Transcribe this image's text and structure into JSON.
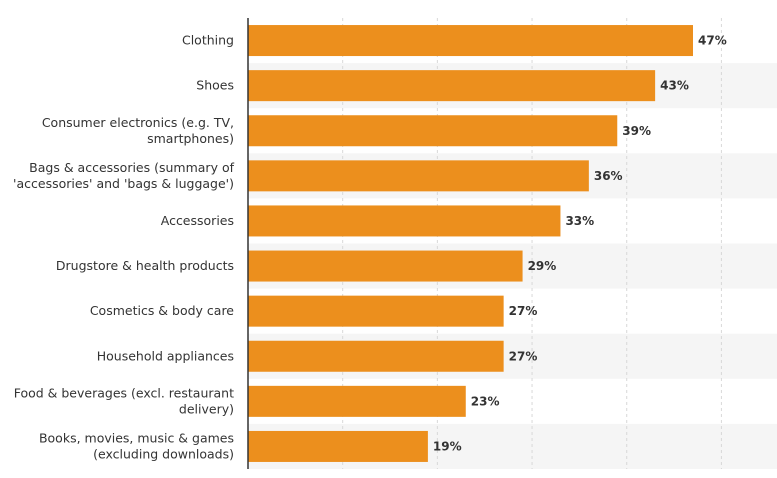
{
  "chart_data": {
    "type": "bar",
    "orientation": "horizontal",
    "categories": [
      [
        "Clothing"
      ],
      [
        "Shoes"
      ],
      [
        "Consumer electronics (e.g. TV,",
        "smartphones)"
      ],
      [
        "Bags & accessories (summary of",
        "'accessories' and 'bags & luggage')"
      ],
      [
        "Accessories"
      ],
      [
        "Drugstore & health products"
      ],
      [
        "Cosmetics & body care"
      ],
      [
        "Household appliances"
      ],
      [
        "Food & beverages (excl. restaurant",
        "delivery)"
      ],
      [
        "Books, movies, music & games",
        "(excluding downloads)"
      ]
    ],
    "values": [
      47,
      43,
      39,
      36,
      33,
      29,
      27,
      27,
      23,
      19
    ],
    "value_labels": [
      "47%",
      "43%",
      "39%",
      "36%",
      "33%",
      "29%",
      "27%",
      "27%",
      "23%",
      "19%"
    ],
    "xlim": [
      0,
      55
    ],
    "grid": true,
    "colors": {
      "bar": "#ec8f1d",
      "band": "#f5f5f5",
      "grid": "#d8d8d8"
    }
  }
}
